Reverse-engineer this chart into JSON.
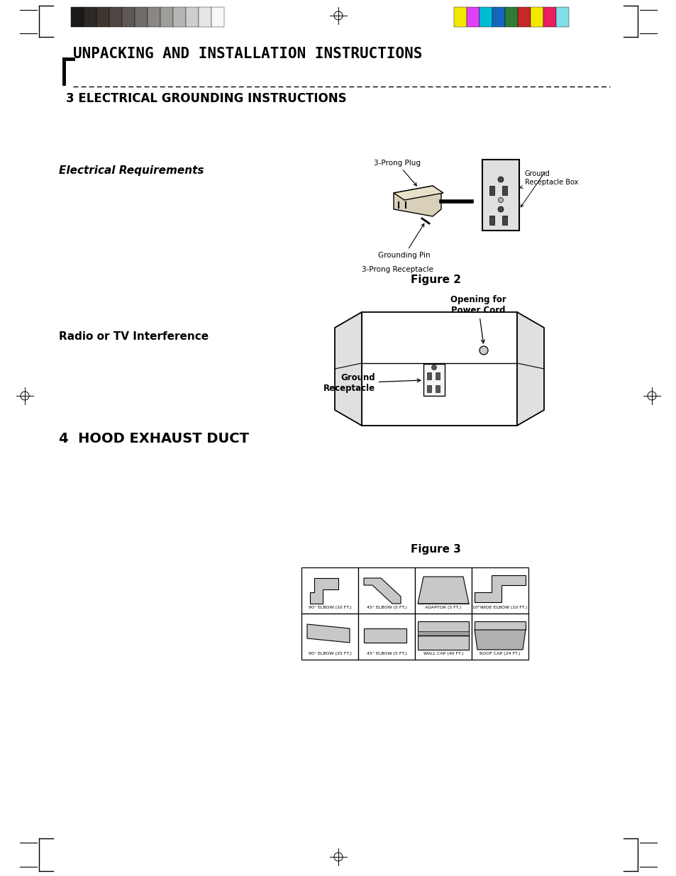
{
  "bg_color": "#ffffff",
  "page_title": "UNPACKING AND INSTALLATION INSTRUCTIONS",
  "section3_title": "3 ELECTRICAL GROUNDING INSTRUCTIONS",
  "section4_title": "4  HOOD EXHAUST DUCT",
  "electrical_req_label": "Electrical Requirements",
  "radio_tv_label": "Radio or TV Interference",
  "figure2_label": "Figure 2",
  "figure3_label": "Figure 3",
  "fig2_ground_label": "Ground\nReceptacle",
  "fig2_opening_label": "Opening for\nPower Cord",
  "color_swatches_left": [
    "#1a1a1a",
    "#2d2926",
    "#3d3530",
    "#4e4642",
    "#5e5854",
    "#706c68",
    "#8a8784",
    "#a09e9b",
    "#b8b6b4",
    "#d0cecc",
    "#e8e6e4",
    "#f8f8f8"
  ],
  "color_swatches_right": [
    "#f5e800",
    "#e040fb",
    "#00bcd4",
    "#1565c0",
    "#2e7d32",
    "#c62828",
    "#f5e800",
    "#e91e63",
    "#80deea"
  ],
  "labels_top": [
    "90° ELBOW (10 FT.)",
    "45° ELBOW (5 FT.)",
    "ADAPTOR (5 FT.)",
    "10\"WIDE ELBOW (10 FT.)"
  ],
  "labels_bot": [
    "90° ELBOW (25 FT.)",
    "45° ELBOW (5 FT.)",
    "WALL CAP (40 FT.)",
    "ROOF CAP (24 FT.)"
  ]
}
